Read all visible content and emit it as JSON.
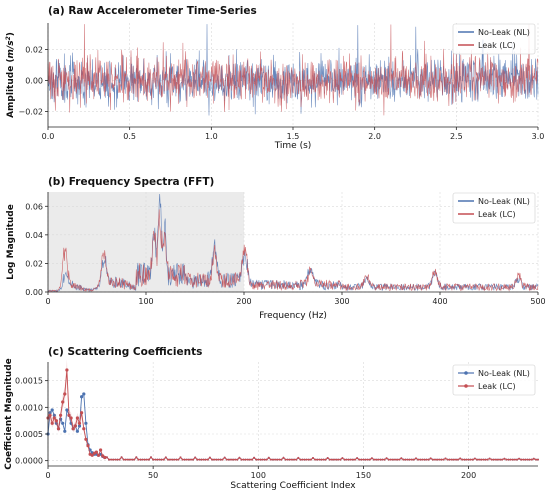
{
  "chart_data": [
    {
      "type": "line",
      "title": "(a) Raw Accelerometer Time-Series",
      "xlabel": "Time (s)",
      "ylabel": "Amplitude (m/s²)",
      "ylabel_parts": {
        "main": "Amplitude (",
        "unit": "m/s",
        "sup": "2",
        "close": ")"
      },
      "xlim": [
        0,
        3.0
      ],
      "ylim": [
        -0.03,
        0.037
      ],
      "xticks": [
        0.0,
        0.5,
        1.0,
        1.5,
        2.0,
        2.5,
        3.0
      ],
      "xtick_labels": [
        "0.0",
        "0.5",
        "1.0",
        "1.5",
        "2.0",
        "2.5",
        "3.0"
      ],
      "yticks": [
        -0.02,
        0.0,
        0.02
      ],
      "ytick_labels": [
        "−0.02",
        "0.00",
        "0.02"
      ],
      "grid": true,
      "legend_position": "top-right",
      "series": [
        {
          "name": "No-Leak (NL)",
          "color": "#4c72b0",
          "signal": "noise",
          "sample_count": 1200,
          "amplitude_std": 0.0075,
          "seed": 11
        },
        {
          "name": "Leak (LC)",
          "color": "#c44e52",
          "signal": "noise",
          "sample_count": 1200,
          "amplitude_std": 0.0075,
          "seed": 29
        }
      ]
    },
    {
      "type": "line",
      "title": "(b) Frequency Spectra (FFT)",
      "xlabel": "Frequency (Hz)",
      "ylabel": "Log Magnitude",
      "xlim": [
        0,
        500
      ],
      "ylim": [
        0,
        0.07
      ],
      "xticks": [
        0,
        100,
        200,
        300,
        400,
        500
      ],
      "xtick_labels": [
        "0",
        "100",
        "200",
        "300",
        "400",
        "500"
      ],
      "yticks": [
        0.0,
        0.02,
        0.04,
        0.06
      ],
      "ytick_labels": [
        "0.00",
        "0.02",
        "0.04",
        "0.06"
      ],
      "grid": true,
      "legend_position": "top-right",
      "highlight_band": {
        "x_range": [
          0,
          200
        ],
        "y_range": [
          0,
          0.07
        ],
        "color": "#d3d3d3"
      },
      "spectral_peaks_hz": [
        {
          "f": 17,
          "nl": 0.006,
          "lc": 0.026
        },
        {
          "f": 57,
          "nl": 0.022,
          "lc": 0.026
        },
        {
          "f": 108,
          "nl": 0.03,
          "lc": 0.034
        },
        {
          "f": 114,
          "nl": 0.066,
          "lc": 0.05
        },
        {
          "f": 119,
          "nl": 0.035,
          "lc": 0.04
        },
        {
          "f": 170,
          "nl": 0.022,
          "lc": 0.02
        },
        {
          "f": 201,
          "nl": 0.02,
          "lc": 0.027
        },
        {
          "f": 268,
          "nl": 0.013,
          "lc": 0.011
        },
        {
          "f": 325,
          "nl": 0.007,
          "lc": 0.01
        },
        {
          "f": 395,
          "nl": 0.011,
          "lc": 0.012
        },
        {
          "f": 480,
          "nl": 0.006,
          "lc": 0.009
        }
      ],
      "series": [
        {
          "name": "No-Leak (NL)",
          "color": "#4c72b0",
          "seed": 7
        },
        {
          "name": "Leak (LC)",
          "color": "#c44e52",
          "seed": 19
        }
      ]
    },
    {
      "type": "line",
      "title": "(c) Scattering Coefficients",
      "xlabel": "Scattering Coefficient Index",
      "ylabel": "Coefficient Magnitude",
      "xlim": [
        0,
        233
      ],
      "ylim": [
        -0.0001,
        0.00185
      ],
      "xticks": [
        0,
        50,
        100,
        150,
        200
      ],
      "xtick_labels": [
        "0",
        "50",
        "100",
        "150",
        "200"
      ],
      "yticks": [
        0.0,
        0.0005,
        0.001,
        0.0015
      ],
      "ytick_labels": [
        "0.0000",
        "0.0005",
        "0.0010",
        "0.0015"
      ],
      "grid": true,
      "legend_position": "top-right",
      "series": [
        {
          "name": "No-Leak (NL)",
          "color": "#4c72b0",
          "marker": "circle",
          "head_values": [
            0.0005,
            0.0009,
            0.00095,
            0.00085,
            0.0007,
            0.0006,
            0.00078,
            0.0007,
            0.00055,
            0.00095,
            0.00085,
            0.0007,
            0.0006,
            0.00065,
            0.00055,
            0.00065,
            0.0012,
            0.00125,
            0.0007,
            0.0003,
            0.0002,
            0.00015,
            0.00012,
            0.00012,
            0.0001,
            0.00012,
            8e-05,
            6e-05
          ],
          "tail_value": 2e-05,
          "tail_bump": 5e-05,
          "tail_period": 7
        },
        {
          "name": "Leak (LC)",
          "color": "#c44e52",
          "marker": "circle",
          "head_values": [
            0.0008,
            0.00085,
            0.0007,
            0.0008,
            0.00075,
            0.0006,
            0.00085,
            0.0011,
            0.00125,
            0.0017,
            0.00085,
            0.0008,
            0.0006,
            0.00065,
            0.0008,
            0.0007,
            0.0009,
            0.0006,
            0.0004,
            0.00028,
            0.00012,
            0.0001,
            0.00014,
            0.00016,
            0.0001,
            0.0002,
            9e-05,
            6e-05
          ],
          "tail_value": 2e-05,
          "tail_bump": 5e-05,
          "tail_period": 7
        }
      ]
    }
  ]
}
